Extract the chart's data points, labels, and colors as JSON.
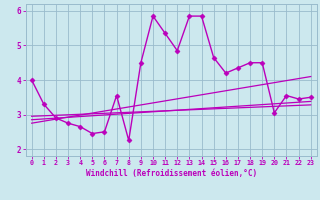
{
  "xlabel": "Windchill (Refroidissement éolien,°C)",
  "xlim": [
    -0.5,
    23.5
  ],
  "ylim": [
    1.8,
    6.2
  ],
  "yticks": [
    2,
    3,
    4,
    5,
    6
  ],
  "xticks": [
    0,
    1,
    2,
    3,
    4,
    5,
    6,
    7,
    8,
    9,
    10,
    11,
    12,
    13,
    14,
    15,
    16,
    17,
    18,
    19,
    20,
    21,
    22,
    23
  ],
  "bg_color": "#cce8ee",
  "line_color": "#bb00bb",
  "grid_color": "#99bbcc",
  "lines": [
    {
      "x": [
        0,
        1,
        2,
        3,
        4,
        5,
        6,
        7,
        8,
        9,
        10,
        11,
        12,
        13,
        14,
        15,
        16,
        17,
        18,
        19,
        20,
        21,
        22,
        23
      ],
      "y": [
        4.0,
        3.3,
        2.9,
        2.75,
        2.65,
        2.45,
        2.5,
        3.55,
        2.25,
        4.5,
        5.85,
        5.35,
        4.85,
        5.85,
        5.85,
        4.65,
        4.2,
        4.35,
        4.5,
        4.5,
        3.05,
        3.55,
        3.45,
        3.5
      ],
      "marker": "D",
      "markersize": 2.5,
      "linewidth": 1.0
    },
    {
      "x": [
        0,
        23
      ],
      "y": [
        2.85,
        3.38
      ],
      "marker": null,
      "linewidth": 0.9
    },
    {
      "x": [
        0,
        23
      ],
      "y": [
        2.95,
        3.28
      ],
      "marker": null,
      "linewidth": 0.9
    },
    {
      "x": [
        0,
        23
      ],
      "y": [
        2.75,
        4.1
      ],
      "marker": null,
      "linewidth": 0.9
    }
  ]
}
